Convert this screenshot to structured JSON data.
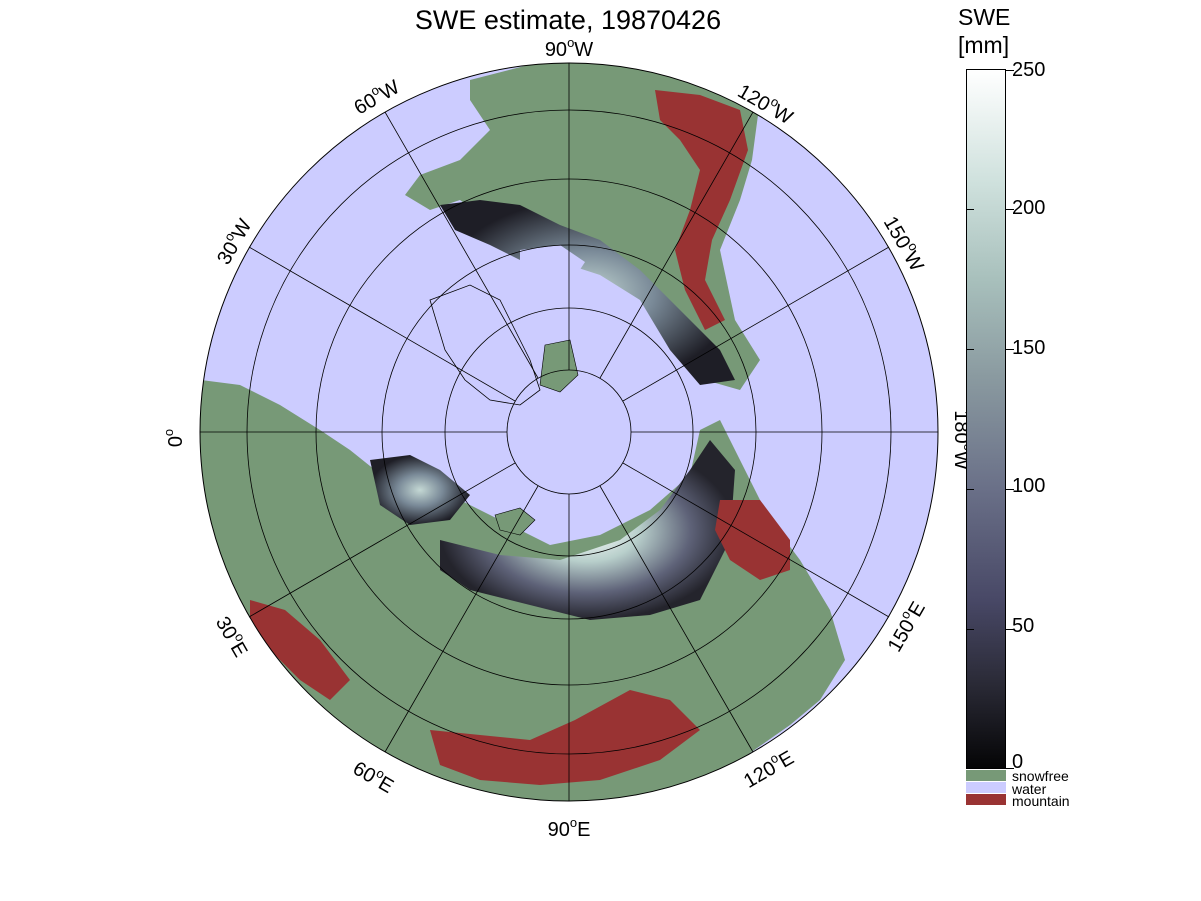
{
  "title": "SWE estimate, 19870426",
  "map": {
    "projection": "north-polar-stereographic",
    "longitude_labels": [
      {
        "deg": "90",
        "hemi": "W"
      },
      {
        "deg": "120",
        "hemi": "W"
      },
      {
        "deg": "150",
        "hemi": "W"
      },
      {
        "deg": "180",
        "hemi": "W"
      },
      {
        "deg": "150",
        "hemi": "E"
      },
      {
        "deg": "120",
        "hemi": "E"
      },
      {
        "deg": "90",
        "hemi": "E"
      },
      {
        "deg": "60",
        "hemi": "E"
      },
      {
        "deg": "30",
        "hemi": "E"
      },
      {
        "deg": "0",
        "hemi": ""
      },
      {
        "deg": "30",
        "hemi": "W"
      },
      {
        "deg": "60",
        "hemi": "W"
      }
    ],
    "degree_symbol": "o"
  },
  "colorbar": {
    "title_line1": "SWE",
    "title_line2": "[mm]",
    "min": 0,
    "max": 250,
    "ticks": [
      "0",
      "50",
      "100",
      "150",
      "200",
      "250"
    ],
    "categories": [
      {
        "label": "snowfree",
        "color": "#779977"
      },
      {
        "label": "water",
        "color": "#ccccff"
      },
      {
        "label": "mountain",
        "color": "#993333"
      }
    ]
  },
  "colors": {
    "water": "#ccccff",
    "land": "#779977",
    "mountain": "#993333"
  }
}
